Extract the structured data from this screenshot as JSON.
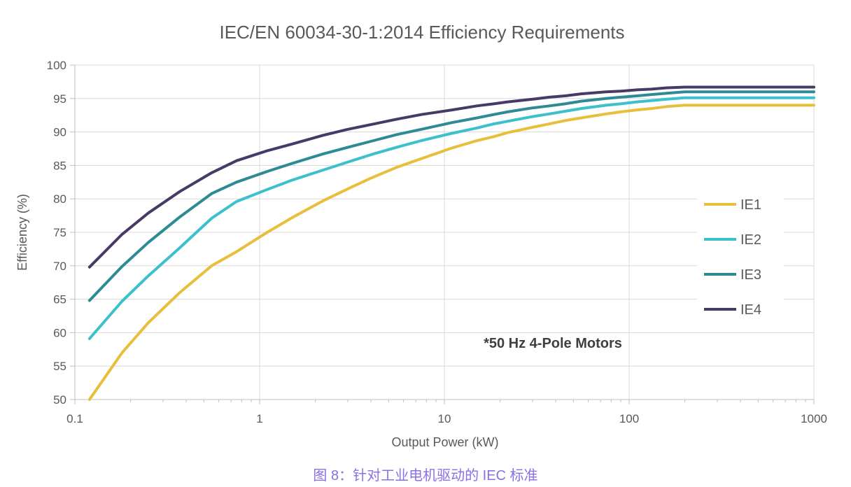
{
  "chart_data": {
    "type": "line",
    "title": "IEC/EN 60034-30-1:2014 Efficiency Requirements",
    "xlabel": "Output Power (kW)",
    "ylabel": "Efficiency (%)",
    "annotation": "*50 Hz 4-Pole Motors",
    "x_scale": "log",
    "xlim": [
      0.1,
      1000
    ],
    "ylim": [
      50,
      100
    ],
    "x_ticks": [
      0.1,
      1,
      10,
      100,
      1000
    ],
    "x_tick_labels": [
      "0.1",
      "1",
      "10",
      "100",
      "1000"
    ],
    "y_ticks": [
      50,
      55,
      60,
      65,
      70,
      75,
      80,
      85,
      90,
      95,
      100
    ],
    "grid": "both-decade-and-5pct",
    "legend_position": "right-inside",
    "x": [
      0.12,
      0.18,
      0.25,
      0.37,
      0.55,
      0.75,
      1.1,
      1.5,
      2.2,
      3,
      4,
      5.5,
      7.5,
      11,
      15,
      18.5,
      22,
      30,
      37,
      45,
      55,
      75,
      90,
      110,
      132,
      160,
      200,
      1000
    ],
    "series": [
      {
        "name": "IE1",
        "color": "#E8BF3C",
        "values": [
          50.0,
          57.0,
          61.5,
          66.0,
          70.0,
          72.1,
          75.0,
          77.2,
          79.7,
          81.5,
          83.1,
          84.7,
          86.0,
          87.6,
          88.7,
          89.3,
          89.9,
          90.7,
          91.2,
          91.7,
          92.1,
          92.7,
          93.0,
          93.3,
          93.5,
          93.8,
          94.0,
          94.0
        ]
      },
      {
        "name": "IE2",
        "color": "#3BC0CC",
        "values": [
          59.1,
          64.7,
          68.5,
          72.7,
          77.1,
          79.6,
          81.4,
          82.8,
          84.3,
          85.5,
          86.6,
          87.7,
          88.7,
          89.8,
          90.6,
          91.2,
          91.6,
          92.3,
          92.7,
          93.1,
          93.5,
          94.0,
          94.2,
          94.5,
          94.7,
          94.9,
          95.1,
          95.1
        ]
      },
      {
        "name": "IE3",
        "color": "#2E8B96",
        "values": [
          64.8,
          69.9,
          73.5,
          77.3,
          80.8,
          82.5,
          84.1,
          85.3,
          86.7,
          87.7,
          88.6,
          89.6,
          90.4,
          91.4,
          92.1,
          92.6,
          93.0,
          93.6,
          93.9,
          94.2,
          94.6,
          95.0,
          95.2,
          95.4,
          95.6,
          95.8,
          96.0,
          96.0
        ]
      },
      {
        "name": "IE4",
        "color": "#483A66",
        "values": [
          69.8,
          74.7,
          77.9,
          81.1,
          83.9,
          85.7,
          87.2,
          88.2,
          89.5,
          90.4,
          91.1,
          91.9,
          92.6,
          93.3,
          93.9,
          94.2,
          94.5,
          94.9,
          95.2,
          95.4,
          95.7,
          96.0,
          96.1,
          96.3,
          96.4,
          96.6,
          96.7,
          96.7
        ]
      }
    ],
    "style": {
      "grid_color": "#D9D9D9",
      "axis_color": "#BFBFBF",
      "line_width": 4
    }
  },
  "caption": {
    "text": "图 8：针对工业电机驱动的 IEC 标准",
    "color": "#8A70E6"
  }
}
